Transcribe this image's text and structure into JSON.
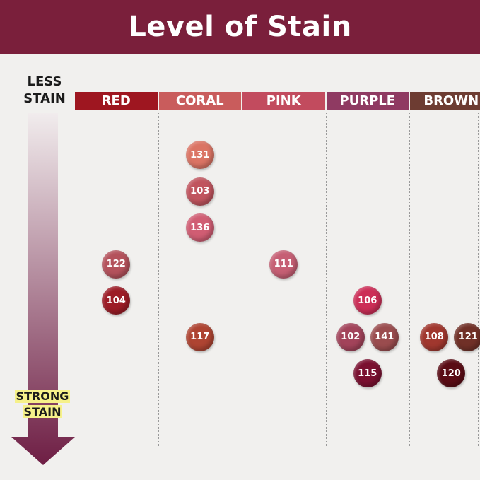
{
  "title": "Level of Stain",
  "less_label": "LESS STAIN",
  "strong_label_line1": "STRONG",
  "strong_label_line2": "STAIN",
  "colors": {
    "header_bg": "#7a1f3b",
    "arrow_top": "#f1eced",
    "arrow_bottom": "#6e1e44"
  },
  "columns": [
    {
      "label": "RED",
      "color": "#9e1620"
    },
    {
      "label": "CORAL",
      "color": "#c95c5c"
    },
    {
      "label": "PINK",
      "color": "#c24b5e"
    },
    {
      "label": "PURPLE",
      "color": "#8f3a62"
    },
    {
      "label": "BROWN",
      "color": "#6d3c32"
    }
  ],
  "shades": [
    {
      "code": "131",
      "column": "CORAL",
      "stain_level": 1,
      "color": "#db7464"
    },
    {
      "code": "103",
      "column": "CORAL",
      "stain_level": 2,
      "color": "#c0545e"
    },
    {
      "code": "136",
      "column": "CORAL",
      "stain_level": 3,
      "color": "#d05d73"
    },
    {
      "code": "122",
      "column": "RED",
      "stain_level": 4,
      "color": "#b4525c"
    },
    {
      "code": "111",
      "column": "PINK",
      "stain_level": 4,
      "color": "#c65f74"
    },
    {
      "code": "104",
      "column": "RED",
      "stain_level": 5,
      "color": "#9c1c26"
    },
    {
      "code": "106",
      "column": "PURPLE",
      "stain_level": 5,
      "color": "#cc2e57"
    },
    {
      "code": "117",
      "column": "CORAL",
      "stain_level": 6,
      "color": "#ae4432"
    },
    {
      "code": "102",
      "column": "PURPLE",
      "stain_level": 6,
      "color": "#a2435a"
    },
    {
      "code": "141",
      "column": "PURPLE",
      "stain_level": 6,
      "color": "#9a4c4e"
    },
    {
      "code": "108",
      "column": "BROWN",
      "stain_level": 6,
      "color": "#a0372e"
    },
    {
      "code": "121",
      "column": "BROWN",
      "stain_level": 6,
      "color": "#703027"
    },
    {
      "code": "115",
      "column": "PURPLE",
      "stain_level": 7,
      "color": "#7a1030"
    },
    {
      "code": "120",
      "column": "BROWN",
      "stain_level": 7,
      "color": "#5a0c15"
    }
  ]
}
